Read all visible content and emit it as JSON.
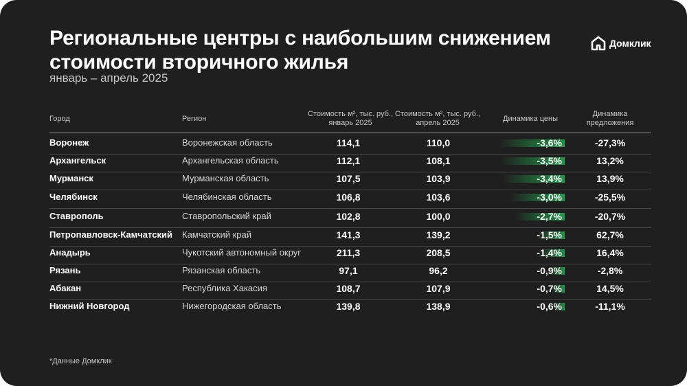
{
  "title": "Региональные центры с наибольшим снижением стоимости вторичного жилья",
  "subtitle": "январь – апрель 2025",
  "logo_text": "Домклик",
  "footnote": "*Данные Домклик",
  "colors": {
    "background": "#1f1f1f",
    "bar": "#1f9a46",
    "text": "#ffffff"
  },
  "chart_data": {
    "type": "table",
    "columns": {
      "city": "Город",
      "region": "Регион",
      "price_jan_l1": "Стоимость м², тыс. руб.,",
      "price_jan_l2": "январь 2025",
      "price_apr_l1": "Стоимость м², тыс. руб.,",
      "price_apr_l2": "апрель 2025",
      "price_change": "Динамика цены",
      "offer_l1": "Динамика",
      "offer_l2": "предложения"
    },
    "rows": [
      {
        "city": "Воронеж",
        "region": "Воронежская область",
        "jan": "114,1",
        "apr": "110,0",
        "change": "-3,6%",
        "change_value": -3.6,
        "offer": "-27,3%"
      },
      {
        "city": "Архангельск",
        "region": "Архангельская область",
        "jan": "112,1",
        "apr": "108,1",
        "change": "-3,5%",
        "change_value": -3.5,
        "offer": "13,2%"
      },
      {
        "city": "Мурманск",
        "region": "Мурманская область",
        "jan": "107,5",
        "apr": "103,9",
        "change": "-3,4%",
        "change_value": -3.4,
        "offer": "13,9%"
      },
      {
        "city": "Челябинск",
        "region": "Челябинская область",
        "jan": "106,8",
        "apr": "103,6",
        "change": "-3,0%",
        "change_value": -3.0,
        "offer": "-25,5%"
      },
      {
        "city": "Ставрополь",
        "region": "Ставропольский край",
        "jan": "102,8",
        "apr": "100,0",
        "change": "-2,7%",
        "change_value": -2.7,
        "offer": "-20,7%"
      },
      {
        "city": "Петропавловск-Камчатский",
        "region": "Камчатский край",
        "jan": "141,3",
        "apr": "139,2",
        "change": "-1,5%",
        "change_value": -1.5,
        "offer": "62,7%"
      },
      {
        "city": "Анадырь",
        "region": "Чукотский автономный округ",
        "jan": "211,3",
        "apr": "208,5",
        "change": "-1,4%",
        "change_value": -1.4,
        "offer": "16,4%"
      },
      {
        "city": "Рязань",
        "region": "Рязанская область",
        "jan": "97,1",
        "apr": "96,2",
        "change": "-0,9%",
        "change_value": -0.9,
        "offer": "-2,8%"
      },
      {
        "city": "Абакан",
        "region": "Республика Хакасия",
        "jan": "108,7",
        "apr": "107,9",
        "change": "-0,7%",
        "change_value": -0.7,
        "offer": "14,5%"
      },
      {
        "city": "Нижний Новгород",
        "region": "Нижегородская область",
        "jan": "139,8",
        "apr": "138,9",
        "change": "-0,6%",
        "change_value": -0.6,
        "offer": "-11,1%"
      }
    ]
  }
}
